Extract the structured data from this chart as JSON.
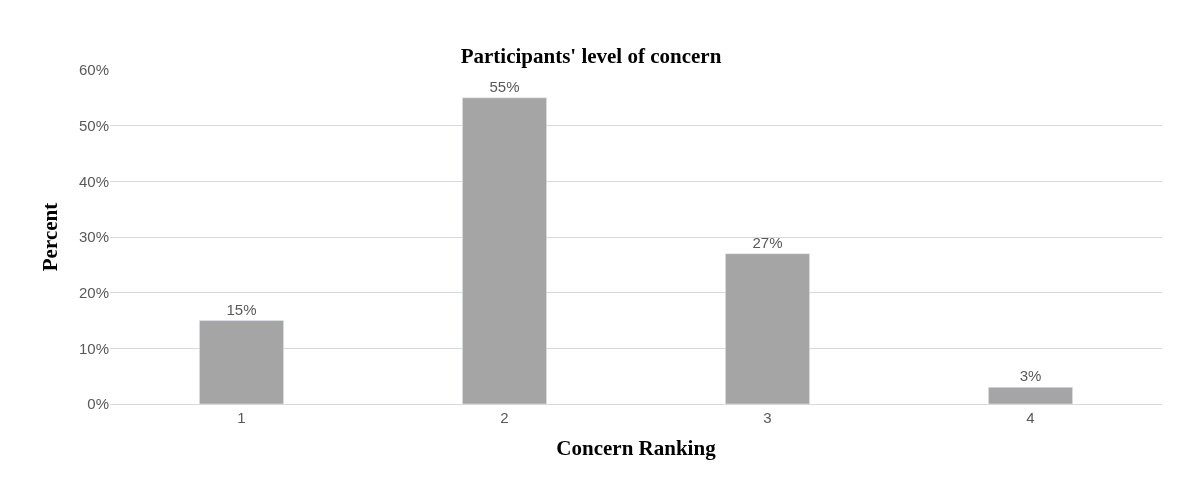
{
  "chart_data": {
    "type": "bar",
    "title": "Participants' level of concern",
    "xlabel": "Concern Ranking",
    "ylabel": "Percent",
    "categories": [
      "1",
      "2",
      "3",
      "4"
    ],
    "values": [
      15,
      55,
      27,
      3
    ],
    "value_labels": [
      "15%",
      "55%",
      "27%",
      "3%"
    ],
    "color": "#a5a5a5",
    "ylim": [
      0,
      60
    ],
    "yticks": [
      {
        "value": 0,
        "label": "0%"
      },
      {
        "value": 10,
        "label": "10%"
      },
      {
        "value": 20,
        "label": "20%"
      },
      {
        "value": 30,
        "label": "30%"
      },
      {
        "value": 40,
        "label": "40%"
      },
      {
        "value": 50,
        "label": "50%"
      },
      {
        "value": 60,
        "label": "60%"
      }
    ],
    "grid": "y",
    "legend": false
  }
}
